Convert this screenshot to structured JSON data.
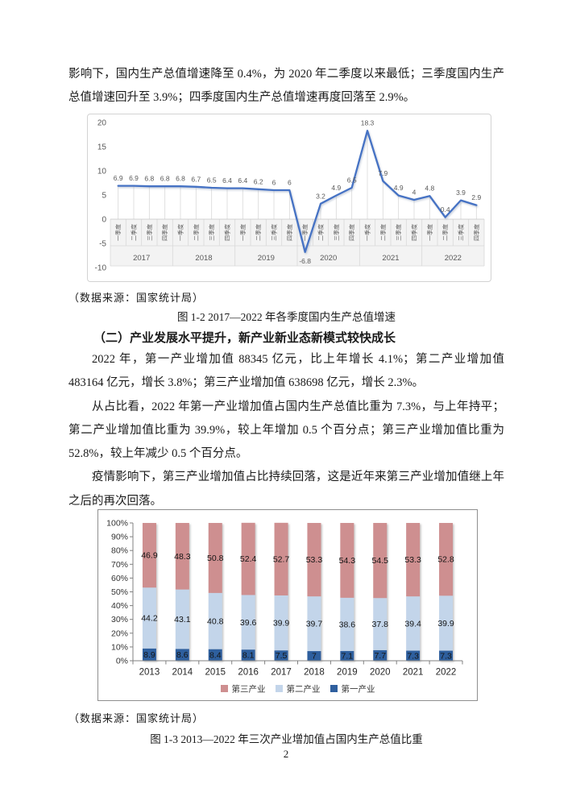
{
  "document": {
    "intro_paragraph": "影响下，国内生产总值增速降至 0.4%，为 2020 年二季度以来最低；三季度国内生产总值增速回升至 3.9%；四季度国内生产总值增速再度回落至 2.9%。",
    "source_note_1": "（数据来源：国家统计局）",
    "figure1_caption": "图 1-2 2017—2022 年各季度国内生产总值增速",
    "section_heading": "（二）产业发展水平提升，新产业新业态新模式较快成长",
    "paragraph_1": "2022 年，第一产业增加值 88345 亿元，比上年增长 4.1%；第二产业增加值 483164 亿元，增长 3.8%；第三产业增加值 638698 亿元，增长 2.3%。",
    "paragraph_2": "从占比看，2022 年第一产业增加值占国内生产总值比重为 7.3%，与上年持平；第二产业增加值比重为 39.9%，较上年增加 0.5 个百分点；第三产业增加值比重为 52.8%，较上年减少 0.5 个百分点。",
    "paragraph_3": "疫情影响下，第三产业增加值占比持续回落，这是近年来第三产业增加值继上年之后的再次回落。",
    "source_note_2": "（数据来源：国家统计局）",
    "figure2_caption": "图 1-3 2013—2022 年三次产业增加值占国内生产总值比重",
    "page_number": "2"
  },
  "chart_data": [
    {
      "type": "line",
      "title": "各季度国内生产总值增速",
      "years": [
        "2017",
        "2018",
        "2019",
        "2020",
        "2021",
        "2022"
      ],
      "quarter_labels": [
        "一季度",
        "二季度",
        "三季度",
        "四季度"
      ],
      "values": [
        6.9,
        6.9,
        6.8,
        6.8,
        6.8,
        6.7,
        6.5,
        6.4,
        6.4,
        6.2,
        6,
        6,
        -6.8,
        3.2,
        4.9,
        6.5,
        18.3,
        7.9,
        4.9,
        4,
        4.8,
        0.4,
        3.9,
        2.9
      ],
      "ylim": [
        -10,
        20
      ],
      "yticks": [
        20,
        15,
        10,
        5,
        0,
        -5,
        -10
      ],
      "line_color": "#4472C4",
      "label_color": "#595959",
      "grid": "drop-lines",
      "legend_position": "none"
    },
    {
      "type": "bar",
      "subtype": "stacked-100",
      "title": "三次产业增加值占国内生产总值比重",
      "categories": [
        "2013",
        "2014",
        "2015",
        "2016",
        "2017",
        "2018",
        "2019",
        "2020",
        "2021",
        "2022"
      ],
      "series": [
        {
          "name": "第一产业",
          "color": "#2F5F9E",
          "values": [
            8.9,
            8.6,
            8.4,
            8.1,
            7.5,
            7,
            7.1,
            7.7,
            7.3,
            7.3
          ]
        },
        {
          "name": "第二产业",
          "color": "#C3D5EA",
          "values": [
            44.2,
            43.1,
            40.8,
            39.6,
            39.9,
            39.7,
            38.6,
            37.8,
            39.4,
            39.9
          ]
        },
        {
          "name": "第三产业",
          "color": "#CE8F90",
          "values": [
            46.9,
            48.3,
            50.8,
            52.4,
            52.7,
            53.3,
            54.3,
            54.5,
            53.3,
            52.8
          ]
        }
      ],
      "legend_order": [
        "第三产业",
        "第二产业",
        "第一产业"
      ],
      "ylim": [
        0,
        100
      ],
      "ytick_step": 10,
      "ytick_suffix": "%",
      "legend_position": "bottom",
      "grid": false
    }
  ]
}
